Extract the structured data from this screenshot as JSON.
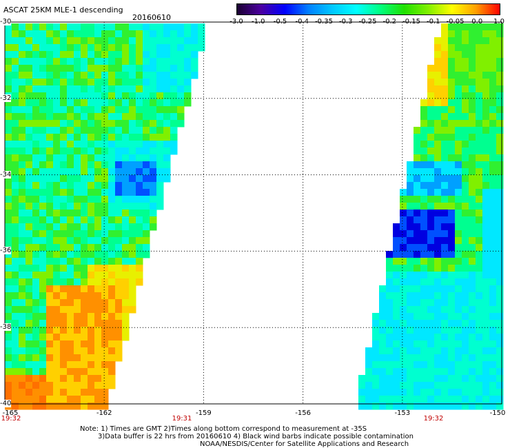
{
  "header": {
    "title": "ASCAT 25KM MLE-1 descending",
    "date": "20160610"
  },
  "colorbar": {
    "ticks": [
      "-3.0",
      "-1.0",
      "-0.5",
      "-0.4",
      "-0.35",
      "-0.3",
      "-0.25",
      "-0.2",
      "-0.15",
      "-0.1",
      "-0.05",
      "0.0",
      "1.0"
    ],
    "colors": [
      "#1a0030",
      "#4b00a0",
      "#0000ff",
      "#0080ff",
      "#00c8ff",
      "#00ffff",
      "#00ff80",
      "#20e000",
      "#80f000",
      "#ffff00",
      "#ffa000",
      "#ff0000"
    ]
  },
  "map": {
    "lat_labels": [
      "-30",
      "-32",
      "-34",
      "-36",
      "-38",
      "-40"
    ],
    "lon_labels": [
      "-165",
      "-162",
      "-159",
      "-156",
      "-153",
      "-150"
    ],
    "lat_range": [
      -40,
      -30
    ],
    "lon_range": [
      -165,
      -150
    ],
    "swaths": [
      {
        "name": "western swath",
        "time": "19:31"
      },
      {
        "name": "eastern swath",
        "time": "19:32"
      }
    ],
    "edge_time": "19:32"
  },
  "notes": {
    "line1": "Note: 1) Times are GMT 2)Times along bottom correspond to measurement at -35S",
    "line2": "3)Data buffer is 22 hrs from 20160610 4) Black wind barbs indicate possible contamination",
    "line3": "NOAA/NESDIS/Center for Satellite Applications and Research"
  }
}
